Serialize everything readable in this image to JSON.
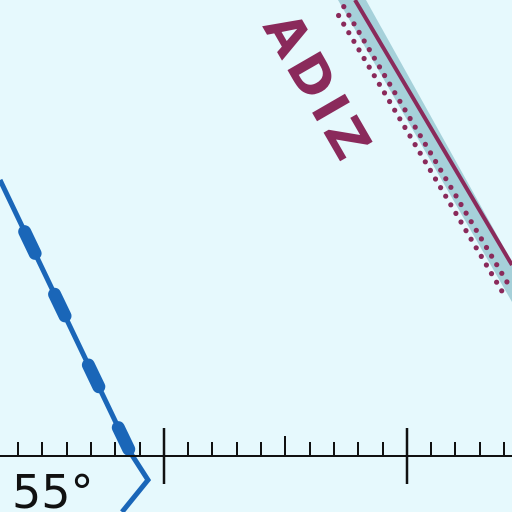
{
  "map": {
    "colors": {
      "water": "#e6f9fd",
      "adiz": "#8a2a5b",
      "adiz_shade": "#a6d1da",
      "boundary": "#1a66b8",
      "graticule": "#111111"
    },
    "labels": {
      "adiz": "ADIZ",
      "latitude": "55°"
    },
    "features": [
      "adiz-boundary-line",
      "airspace-boundary-line",
      "latitude-scale-line"
    ]
  }
}
